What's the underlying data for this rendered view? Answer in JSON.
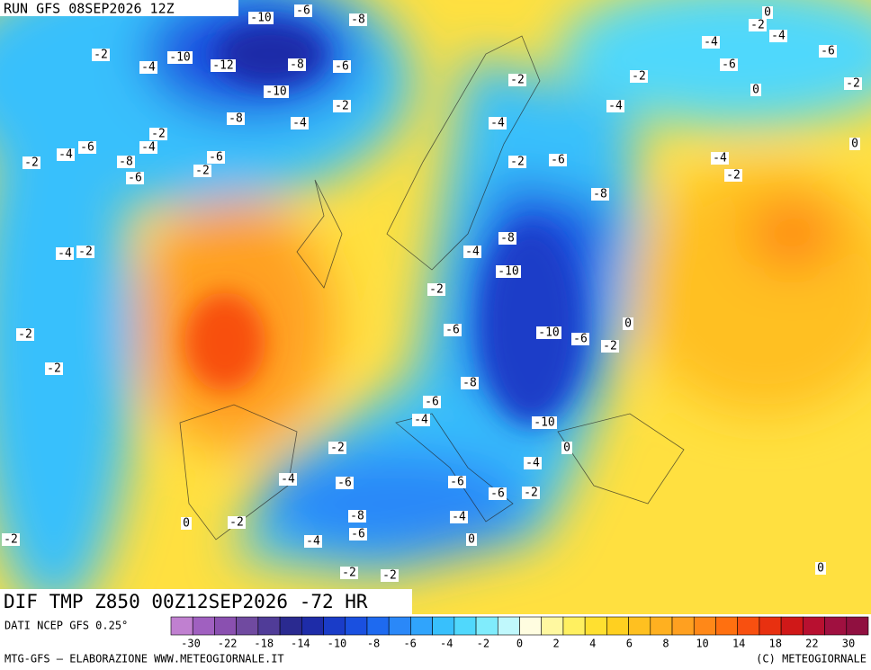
{
  "header": {
    "run": "RUN GFS 08SEP2026 12Z"
  },
  "title": "DIF TMP Z850 00Z12SEP2026 -72 HR",
  "source": "DATI NCEP GFS 0.25°",
  "legend": {
    "colors": [
      "#c080d0",
      "#a060c0",
      "#8a50b0",
      "#704aa0",
      "#503c98",
      "#2a2a90",
      "#1e2ca8",
      "#1a3cc8",
      "#1a50e0",
      "#1e6af0",
      "#2a88f8",
      "#30a4fc",
      "#38c0fc",
      "#50d8fc",
      "#80ecfc",
      "#c0f8fc",
      "#fffde0",
      "#fff8a0",
      "#fff060",
      "#ffe030",
      "#ffd020",
      "#ffc020",
      "#ffb020",
      "#ffa020",
      "#ff8818",
      "#ff7010",
      "#f85010",
      "#e83010",
      "#d01818",
      "#b81030",
      "#a01040",
      "#901040"
    ],
    "labels": [
      -30,
      -22,
      -18,
      -14,
      -10,
      -8,
      -6,
      -4,
      -2,
      0,
      2,
      4,
      6,
      8,
      10,
      14,
      18,
      22,
      30
    ]
  },
  "footer": {
    "left": "MTG-GFS — ELABORAZIONE WWW.METEOGIORNALE.IT",
    "right": "(C) METEOGIORNALE"
  },
  "map_labels": [
    -10,
    -6,
    -8,
    0,
    -2,
    -4,
    -4,
    -6,
    -2,
    -4,
    -10,
    -12,
    -8,
    -6,
    -6,
    -2,
    -2,
    0,
    -2,
    -10,
    -2,
    -4,
    -8,
    -4,
    -4,
    -2,
    -4,
    -6,
    -4,
    0,
    -6,
    -8,
    -2,
    -2,
    -6,
    -4,
    -2,
    -6,
    -2,
    -8,
    -8,
    -4,
    -2,
    -4,
    -10,
    -2,
    0,
    -6,
    -10,
    -6,
    -2,
    -2,
    -2,
    -8,
    -6,
    -4,
    -10,
    0,
    -2,
    -4,
    -4,
    -6,
    -6,
    -6,
    -2,
    0,
    -2,
    -8,
    -4,
    -6,
    -4,
    0,
    -2,
    -2,
    -2,
    0
  ]
}
